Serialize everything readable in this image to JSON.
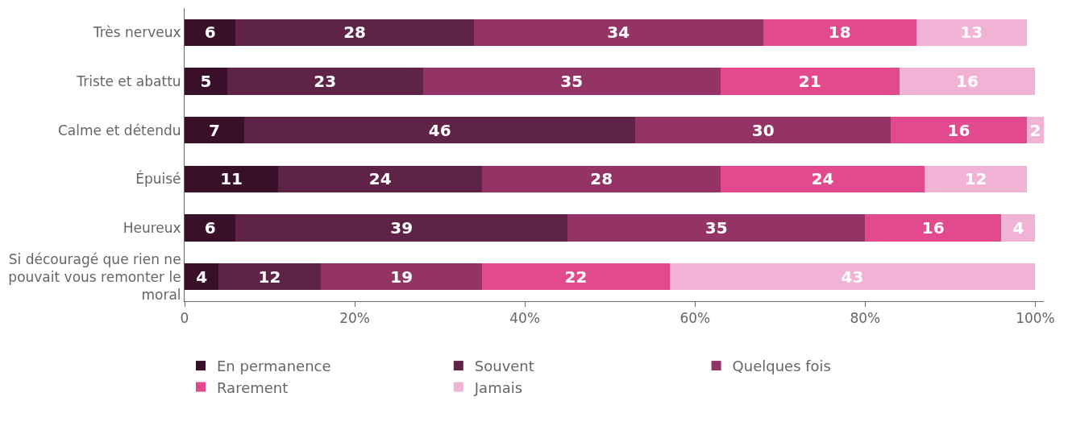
{
  "chart_data": {
    "type": "bar",
    "orientation": "horizontal",
    "stacked": true,
    "categories": [
      "Très nerveux",
      "Triste et abattu",
      "Calme et détendu",
      "Épuisé",
      "Heureux",
      "Si découragé que rien ne pouvait vous remonter le moral"
    ],
    "series": [
      {
        "name": "En permanence",
        "color": "#3a0f2a",
        "values": [
          6,
          5,
          7,
          11,
          6,
          4
        ]
      },
      {
        "name": "Souvent",
        "color": "#5e2346",
        "values": [
          28,
          23,
          46,
          24,
          39,
          12
        ]
      },
      {
        "name": "Quelques fois",
        "color": "#933366",
        "values": [
          34,
          35,
          30,
          28,
          35,
          19
        ]
      },
      {
        "name": "Rarement",
        "color": "#e34a8e",
        "values": [
          18,
          21,
          16,
          24,
          16,
          22
        ]
      },
      {
        "name": "Jamais",
        "color": "#f0b3d6",
        "values": [
          13,
          16,
          2,
          12,
          4,
          43
        ]
      }
    ],
    "xlim": [
      0,
      101
    ],
    "xticks": [
      0,
      {
        "value": 20,
        "label": "20%"
      },
      {
        "value": 40,
        "label": "40%"
      },
      {
        "value": 60,
        "label": "60%"
      },
      {
        "value": 80,
        "label": "80%"
      },
      {
        "value": 100,
        "label": "100%"
      }
    ],
    "data_labels": true,
    "legend": "bottom"
  }
}
